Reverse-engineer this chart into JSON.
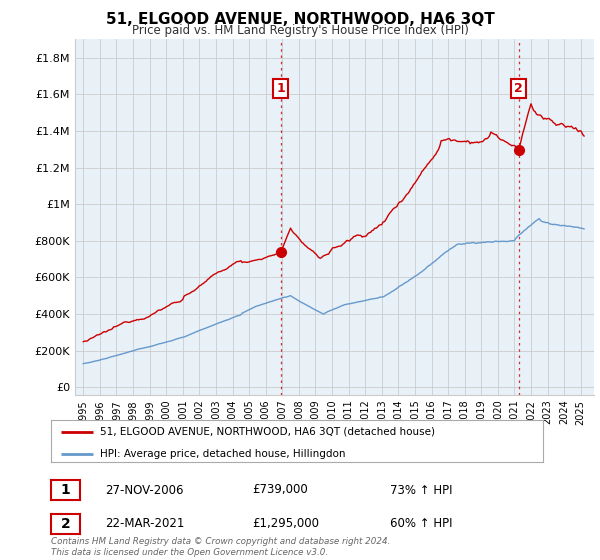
{
  "title": "51, ELGOOD AVENUE, NORTHWOOD, HA6 3QT",
  "subtitle": "Price paid vs. HM Land Registry's House Price Index (HPI)",
  "red_label": "51, ELGOOD AVENUE, NORTHWOOD, HA6 3QT (detached house)",
  "blue_label": "HPI: Average price, detached house, Hillingdon",
  "transaction1_date": "27-NOV-2006",
  "transaction1_price": "£739,000",
  "transaction1_hpi": "73% ↑ HPI",
  "transaction2_date": "22-MAR-2021",
  "transaction2_price": "£1,295,000",
  "transaction2_hpi": "60% ↑ HPI",
  "footer": "Contains HM Land Registry data © Crown copyright and database right 2024.\nThis data is licensed under the Open Government Licence v3.0.",
  "yticks": [
    0,
    200000,
    400000,
    600000,
    800000,
    1000000,
    1200000,
    1400000,
    1600000,
    1800000
  ],
  "ytick_labels": [
    "£0",
    "£200K",
    "£400K",
    "£600K",
    "£800K",
    "£1M",
    "£1.2M",
    "£1.4M",
    "£1.6M",
    "£1.8M"
  ],
  "ylim": [
    -40000,
    1900000
  ],
  "year_start": 1995,
  "year_end": 2025,
  "red_color": "#cc0000",
  "blue_color": "#6699cc",
  "transaction1_year": 2006.92,
  "transaction2_year": 2021.25,
  "transaction1_price_val": 739000,
  "transaction2_price_val": 1295000,
  "chart_bg_color": "#e8f0f8",
  "background_color": "#ffffff",
  "grid_color": "#cccccc"
}
